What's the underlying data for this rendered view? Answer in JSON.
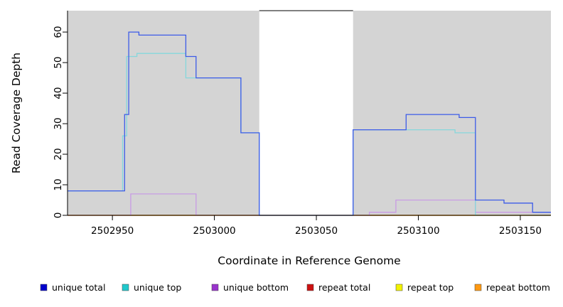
{
  "chart_data": {
    "type": "line",
    "subtype": "step-coverage",
    "title": "",
    "xlabel": "Coordinate in Reference Genome",
    "ylabel": "Read Coverage Depth",
    "xlim": [
      2502928,
      2503165
    ],
    "ylim": [
      0,
      67
    ],
    "x_ticks": [
      2502950,
      2503000,
      2503050,
      2503100,
      2503150
    ],
    "y_ticks": [
      0,
      10,
      20,
      30,
      40,
      50,
      60
    ],
    "grid": false,
    "plot_bg": "#d4d4d4",
    "gap_region": [
      2503022,
      2503068
    ],
    "legend_position": "bottom",
    "series": [
      {
        "name": "repeat total",
        "color": "#DC2020",
        "points": [
          [
            2502928,
            0
          ]
        ]
      },
      {
        "name": "repeat top",
        "color": "#E8E800",
        "points": [
          [
            2502928,
            0
          ]
        ]
      },
      {
        "name": "repeat bottom",
        "color": "#FFA030",
        "points": [
          [
            2502928,
            0
          ]
        ]
      },
      {
        "name": "unique bottom",
        "color": "#C89BE4",
        "points": [
          [
            2502928,
            0
          ],
          [
            2502959,
            7
          ],
          [
            2502991,
            0
          ],
          [
            2503076,
            1
          ],
          [
            2503089,
            5
          ],
          [
            2503128,
            1
          ]
        ]
      },
      {
        "name": "unique top",
        "color": "#85D7DC",
        "points": [
          [
            2502928,
            8
          ],
          [
            2502955,
            26
          ],
          [
            2502957,
            52
          ],
          [
            2502962,
            53
          ],
          [
            2502986,
            45
          ],
          [
            2503013,
            27
          ],
          [
            2503022,
            0
          ],
          [
            2503068,
            28
          ],
          [
            2503118,
            27
          ],
          [
            2503128,
            0
          ]
        ]
      },
      {
        "name": "unique total",
        "color": "#3C5BE8",
        "points": [
          [
            2502928,
            8
          ],
          [
            2502956,
            33
          ],
          [
            2502958,
            60
          ],
          [
            2502963,
            59
          ],
          [
            2502986,
            52
          ],
          [
            2502991,
            45
          ],
          [
            2503013,
            27
          ],
          [
            2503022,
            0
          ],
          [
            2503068,
            28
          ],
          [
            2503094,
            33
          ],
          [
            2503120,
            32
          ],
          [
            2503128,
            5
          ],
          [
            2503142,
            4
          ],
          [
            2503156,
            1
          ]
        ]
      }
    ],
    "legend": {
      "items": [
        {
          "label": "unique total",
          "color": "#0000CC"
        },
        {
          "label": "unique top",
          "color": "#20C8CC"
        },
        {
          "label": "unique bottom",
          "color": "#9933CC"
        },
        {
          "label": "repeat total",
          "color": "#CC1111"
        },
        {
          "label": "repeat top",
          "color": "#F2F200"
        },
        {
          "label": "repeat bottom",
          "color": "#FF9912"
        }
      ]
    }
  }
}
